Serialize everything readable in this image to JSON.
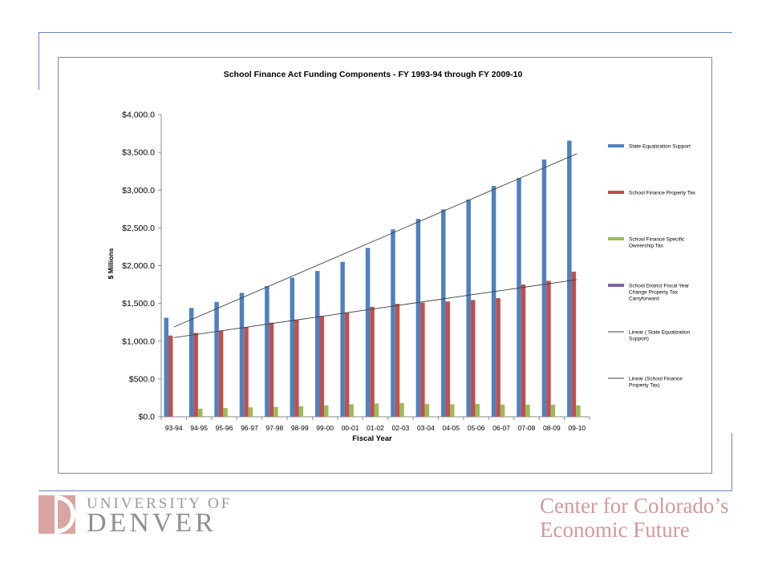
{
  "colors": {
    "frame": "#6a86b8",
    "state_equalization": "#4f81bd",
    "property_tax": "#c0504d",
    "specific_ownership": "#9bbb59",
    "carryforward": "#8064a2",
    "trend": "#404040",
    "logo_text": "#8f8f8f",
    "ccef_text": "#d29a97"
  },
  "branding": {
    "du_line1": "UNIVERSITY OF",
    "du_line2": "DENVER",
    "ccef_line1": "Center for Colorado’s",
    "ccef_line2": "Economic Future"
  },
  "chart_data": {
    "type": "bar",
    "title": "School Finance Act Funding Components - FY 1993-94 through FY 2009-10",
    "xlabel": "Fiscal Year",
    "ylabel": "$ Millions",
    "ylim": [
      0,
      4000
    ],
    "yticks": [
      0,
      500,
      1000,
      1500,
      2000,
      2500,
      3000,
      3500,
      4000
    ],
    "ytick_labels": [
      "$0.0",
      "$500.0",
      "$1,000.0",
      "$1,500.0",
      "$2,000.0",
      "$2,500.0",
      "$3,000.0",
      "$3,500.0",
      "$4,000.0"
    ],
    "grid": false,
    "legend_position": "right",
    "categories": [
      "93-94",
      "94-95",
      "95-96",
      "96-97",
      "97-98",
      "98-99",
      "99-00",
      "00-01",
      "01-02",
      "02-03",
      "03-04",
      "04-05",
      "05-06",
      "06-07",
      "07-08",
      "08-09",
      "09-10"
    ],
    "series": [
      {
        "name": "State Equalization Support",
        "color_key": "state_equalization",
        "values": [
          1310,
          1440,
          1520,
          1640,
          1730,
          1840,
          1930,
          2050,
          2235,
          2480,
          2620,
          2745,
          2875,
          3055,
          3160,
          3405,
          3655
        ]
      },
      {
        "name": "School Finance Property Tax",
        "color_key": "property_tax",
        "values": [
          1075,
          1110,
          1140,
          1185,
          1245,
          1285,
          1335,
          1380,
          1455,
          1495,
          1510,
          1525,
          1545,
          1570,
          1750,
          1800,
          1920
        ]
      },
      {
        "name": "School Finance Specific Ownership Tax",
        "color_key": "specific_ownership",
        "values": [
          0,
          105,
          115,
          125,
          130,
          140,
          150,
          165,
          175,
          180,
          170,
          165,
          170,
          160,
          160,
          160,
          150
        ]
      },
      {
        "name": "School District Fiscal Year Change Property Tax Carryforward",
        "color_key": "carryforward",
        "values": [
          0,
          0,
          0,
          0,
          0,
          0,
          0,
          0,
          0,
          0,
          0,
          0,
          0,
          0,
          0,
          0,
          0
        ]
      }
    ],
    "trendlines": [
      {
        "name": "Linear ( State Equalization Support)",
        "fit_of": "State Equalization Support"
      },
      {
        "name": "Linear (School Finance Property Tax)",
        "fit_of": "School Finance Property Tax"
      }
    ]
  }
}
